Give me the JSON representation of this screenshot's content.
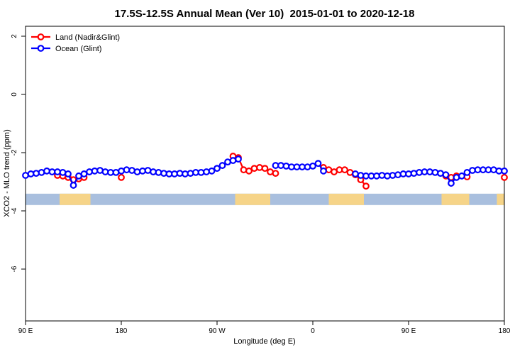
{
  "chart_data": {
    "type": "scatter",
    "title": "17.5S-12.5S Annual Mean (Ver 10)  2015-01-01 to 2020-12-18",
    "xlabel": "Longitude (deg E)",
    "ylabel": "XCO2 - MLO trend (ppm)",
    "xlim": [
      90,
      540
    ],
    "ylim": [
      -7.8,
      2.35
    ],
    "grid": false,
    "x_ticks": [
      {
        "pos": 90,
        "label": "90 E"
      },
      {
        "pos": 180,
        "label": "180"
      },
      {
        "pos": 270,
        "label": "90 W"
      },
      {
        "pos": 360,
        "label": "0"
      },
      {
        "pos": 450,
        "label": "90 E"
      },
      {
        "pos": 540,
        "label": "180"
      }
    ],
    "y_ticks": [
      {
        "pos": 2,
        "label": "2"
      },
      {
        "pos": 0,
        "label": "0"
      },
      {
        "pos": -2,
        "label": "-2"
      },
      {
        "pos": -4,
        "label": "-4"
      },
      {
        "pos": -6,
        "label": "-6"
      }
    ],
    "legend": [
      {
        "label": "Land (Nadir&Glint)",
        "color": "#ff0000"
      },
      {
        "label": "Ocean (Glint)",
        "color": "#0000ff"
      }
    ],
    "series": [
      {
        "name": "Land (Nadir&Glint)",
        "color": "#ff0000",
        "points": [
          [
            120,
            -2.78
          ],
          [
            125,
            -2.8
          ],
          [
            130,
            -2.85
          ],
          [
            135,
            -2.93
          ],
          [
            140,
            -2.9
          ],
          [
            145,
            -2.85
          ],
          [
            180,
            -2.85
          ],
          [
            285,
            -2.12
          ],
          [
            290,
            -2.17
          ],
          [
            295,
            -2.59
          ],
          [
            300,
            -2.63
          ],
          [
            305,
            -2.54
          ],
          [
            310,
            -2.51
          ],
          [
            315,
            -2.54
          ],
          [
            320,
            -2.66
          ],
          [
            325,
            -2.71
          ],
          [
            370,
            -2.51
          ],
          [
            375,
            -2.59
          ],
          [
            380,
            -2.66
          ],
          [
            385,
            -2.59
          ],
          [
            390,
            -2.59
          ],
          [
            395,
            -2.68
          ],
          [
            400,
            -2.76
          ],
          [
            405,
            -2.93
          ],
          [
            410,
            -3.15
          ],
          [
            485,
            -2.8
          ],
          [
            490,
            -2.85
          ],
          [
            495,
            -2.8
          ],
          [
            505,
            -2.83
          ],
          [
            540,
            -2.85
          ]
        ]
      },
      {
        "name": "Ocean (Glint)",
        "color": "#0000ff",
        "points": [
          [
            90,
            -2.78
          ],
          [
            95,
            -2.73
          ],
          [
            100,
            -2.71
          ],
          [
            105,
            -2.68
          ],
          [
            110,
            -2.63
          ],
          [
            115,
            -2.66
          ],
          [
            120,
            -2.66
          ],
          [
            125,
            -2.68
          ],
          [
            130,
            -2.73
          ],
          [
            135,
            -3.12
          ],
          [
            140,
            -2.8
          ],
          [
            145,
            -2.73
          ],
          [
            150,
            -2.66
          ],
          [
            155,
            -2.63
          ],
          [
            160,
            -2.61
          ],
          [
            165,
            -2.66
          ],
          [
            170,
            -2.68
          ],
          [
            175,
            -2.68
          ],
          [
            180,
            -2.63
          ],
          [
            185,
            -2.59
          ],
          [
            190,
            -2.61
          ],
          [
            195,
            -2.66
          ],
          [
            200,
            -2.63
          ],
          [
            205,
            -2.61
          ],
          [
            210,
            -2.66
          ],
          [
            215,
            -2.68
          ],
          [
            220,
            -2.71
          ],
          [
            225,
            -2.73
          ],
          [
            230,
            -2.73
          ],
          [
            235,
            -2.71
          ],
          [
            240,
            -2.73
          ],
          [
            245,
            -2.71
          ],
          [
            250,
            -2.68
          ],
          [
            255,
            -2.68
          ],
          [
            260,
            -2.66
          ],
          [
            265,
            -2.63
          ],
          [
            270,
            -2.54
          ],
          [
            275,
            -2.44
          ],
          [
            280,
            -2.32
          ],
          [
            285,
            -2.27
          ],
          [
            290,
            -2.22
          ],
          [
            325,
            -2.44
          ],
          [
            330,
            -2.44
          ],
          [
            335,
            -2.46
          ],
          [
            340,
            -2.49
          ],
          [
            345,
            -2.49
          ],
          [
            350,
            -2.49
          ],
          [
            355,
            -2.49
          ],
          [
            360,
            -2.46
          ],
          [
            365,
            -2.37
          ],
          [
            370,
            -2.63
          ],
          [
            400,
            -2.73
          ],
          [
            405,
            -2.78
          ],
          [
            410,
            -2.8
          ],
          [
            415,
            -2.8
          ],
          [
            420,
            -2.8
          ],
          [
            425,
            -2.78
          ],
          [
            430,
            -2.8
          ],
          [
            435,
            -2.78
          ],
          [
            440,
            -2.76
          ],
          [
            445,
            -2.73
          ],
          [
            450,
            -2.73
          ],
          [
            455,
            -2.71
          ],
          [
            460,
            -2.68
          ],
          [
            465,
            -2.66
          ],
          [
            470,
            -2.66
          ],
          [
            475,
            -2.68
          ],
          [
            480,
            -2.71
          ],
          [
            485,
            -2.76
          ],
          [
            490,
            -3.05
          ],
          [
            495,
            -2.85
          ],
          [
            500,
            -2.8
          ],
          [
            505,
            -2.68
          ],
          [
            510,
            -2.61
          ],
          [
            515,
            -2.59
          ],
          [
            520,
            -2.59
          ],
          [
            525,
            -2.59
          ],
          [
            530,
            -2.59
          ],
          [
            535,
            -2.63
          ],
          [
            540,
            -2.63
          ]
        ]
      }
    ],
    "map_band": {
      "value_top": -3.41,
      "value_bottom": -3.8,
      "ocean_color": "#a9bfde",
      "land_color": "#f6d488",
      "land_segments": [
        [
          122,
          151
        ],
        [
          287,
          320
        ],
        [
          375,
          408
        ],
        [
          481,
          507
        ],
        [
          533,
          540
        ]
      ]
    }
  }
}
